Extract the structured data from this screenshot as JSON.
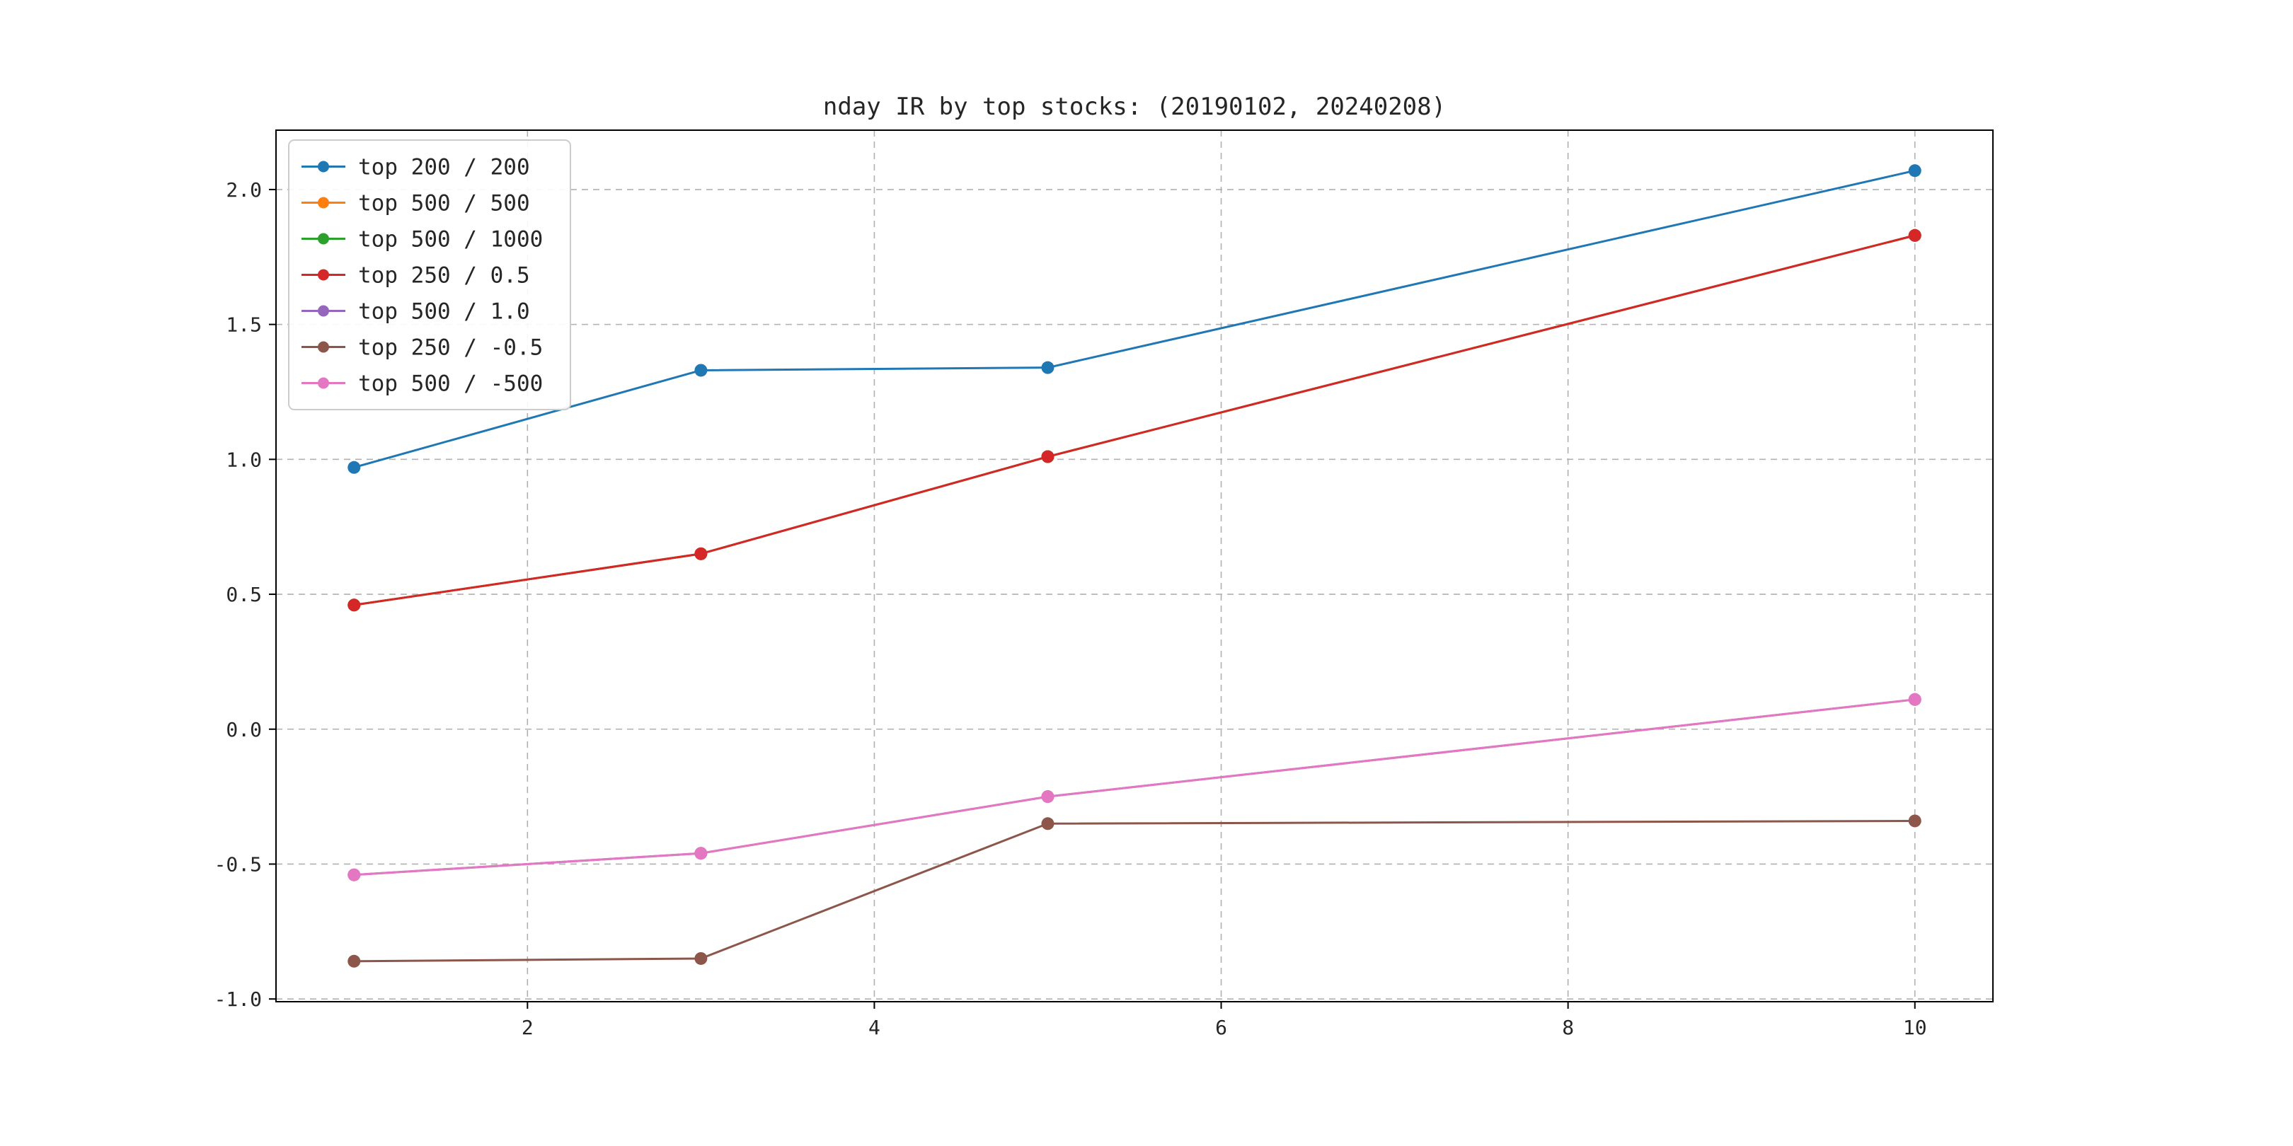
{
  "figure": {
    "background": "#ffffff"
  },
  "chart_data": {
    "type": "line",
    "title": "nday IR by top stocks: (20190102, 20240208)",
    "x": [
      1,
      3,
      5,
      10
    ],
    "series": [
      {
        "name": "top 200 / 200",
        "color": "#1f77b4",
        "values": [
          0.97,
          1.33,
          1.34,
          2.07
        ]
      },
      {
        "name": "top 500 / 500",
        "color": "#ff7f0e",
        "values": [
          0.46,
          0.65,
          1.01,
          1.83
        ]
      },
      {
        "name": "top 500 / 1000",
        "color": "#2ca02c",
        "values": [
          0.46,
          0.65,
          1.01,
          1.83
        ]
      },
      {
        "name": "top 250 / 0.5",
        "color": "#d62728",
        "values": [
          0.46,
          0.65,
          1.01,
          1.83
        ]
      },
      {
        "name": "top 500 / 1.0",
        "color": "#9467bd",
        "values": [
          -0.54,
          -0.46,
          -0.25,
          0.11
        ]
      },
      {
        "name": "top 250 / -0.5",
        "color": "#8c564b",
        "values": [
          -0.86,
          -0.85,
          -0.35,
          -0.34
        ]
      },
      {
        "name": "top 500 / -500",
        "color": "#e377c2",
        "values": [
          -0.54,
          -0.46,
          -0.25,
          0.11
        ]
      }
    ],
    "xticks": [
      2,
      4,
      6,
      8,
      10
    ],
    "yticks": [
      -1.0,
      -0.5,
      0.0,
      0.5,
      1.0,
      1.5,
      2.0
    ],
    "xlim": [
      0.55,
      10.45
    ],
    "ylim": [
      -1.01,
      2.22
    ],
    "grid": true,
    "grid_color": "#b0b0b0",
    "axis_color": "#000000",
    "legend_position": "upper left",
    "xlabel": "",
    "ylabel": ""
  }
}
